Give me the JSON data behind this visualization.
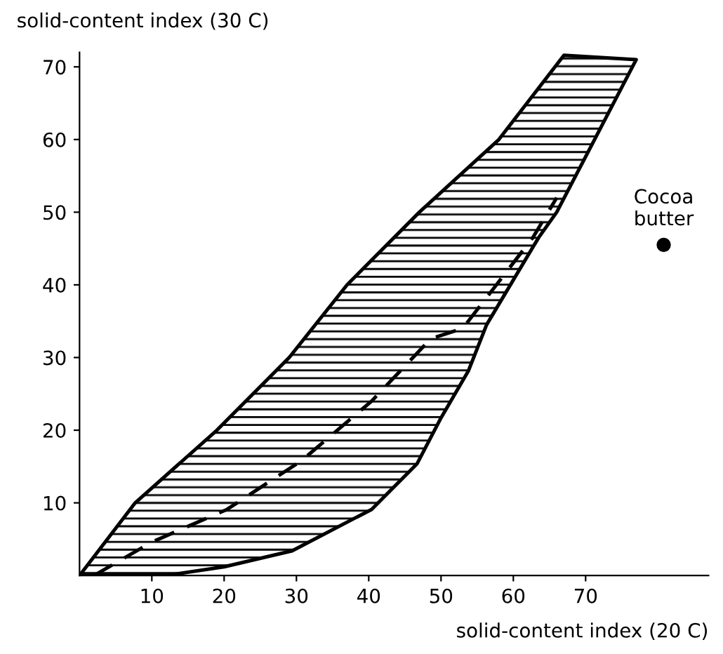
{
  "chart_data": {
    "type": "line",
    "xlabel": "solid-content index (20 C)",
    "ylabel": "solid-content index (30 C)",
    "xlim": [
      0,
      87
    ],
    "ylim": [
      0,
      72
    ],
    "xticks": [
      10,
      20,
      30,
      40,
      50,
      60,
      70
    ],
    "yticks": [
      10,
      20,
      30,
      40,
      50,
      60,
      70
    ],
    "grid": false,
    "legend": false,
    "series": [
      {
        "type": "area",
        "color": "#000000",
        "x": [
          0,
          7.7,
          19,
          29,
          37,
          47,
          58,
          67,
          77,
          66,
          63.5,
          56.3,
          53.8,
          50,
          46.7,
          40.4,
          29.4,
          20,
          12,
          0
        ],
        "values": [
          0,
          10,
          20,
          30,
          40,
          50,
          60,
          71.6,
          71,
          50,
          46.5,
          34.5,
          28.2,
          21.7,
          15.4,
          9.1,
          3.4,
          1.2,
          0,
          0
        ]
      },
      {
        "line_style": "dashed",
        "color": "#000000",
        "x": [
          2,
          10,
          20.4,
          30.7,
          40.4,
          48.6,
          53,
          62.7,
          66
        ],
        "values": [
          0,
          4.6,
          9.1,
          15.8,
          24,
          32.6,
          34,
          46.5,
          52
        ]
      },
      {
        "type": "scatter",
        "marker": "circle",
        "color": "#000000",
        "x": [
          80.8
        ],
        "values": [
          45.5
        ]
      }
    ],
    "annotations": [
      {
        "text": "Cocoa\nbutter",
        "x": 80.8,
        "y": 45.5
      }
    ]
  }
}
